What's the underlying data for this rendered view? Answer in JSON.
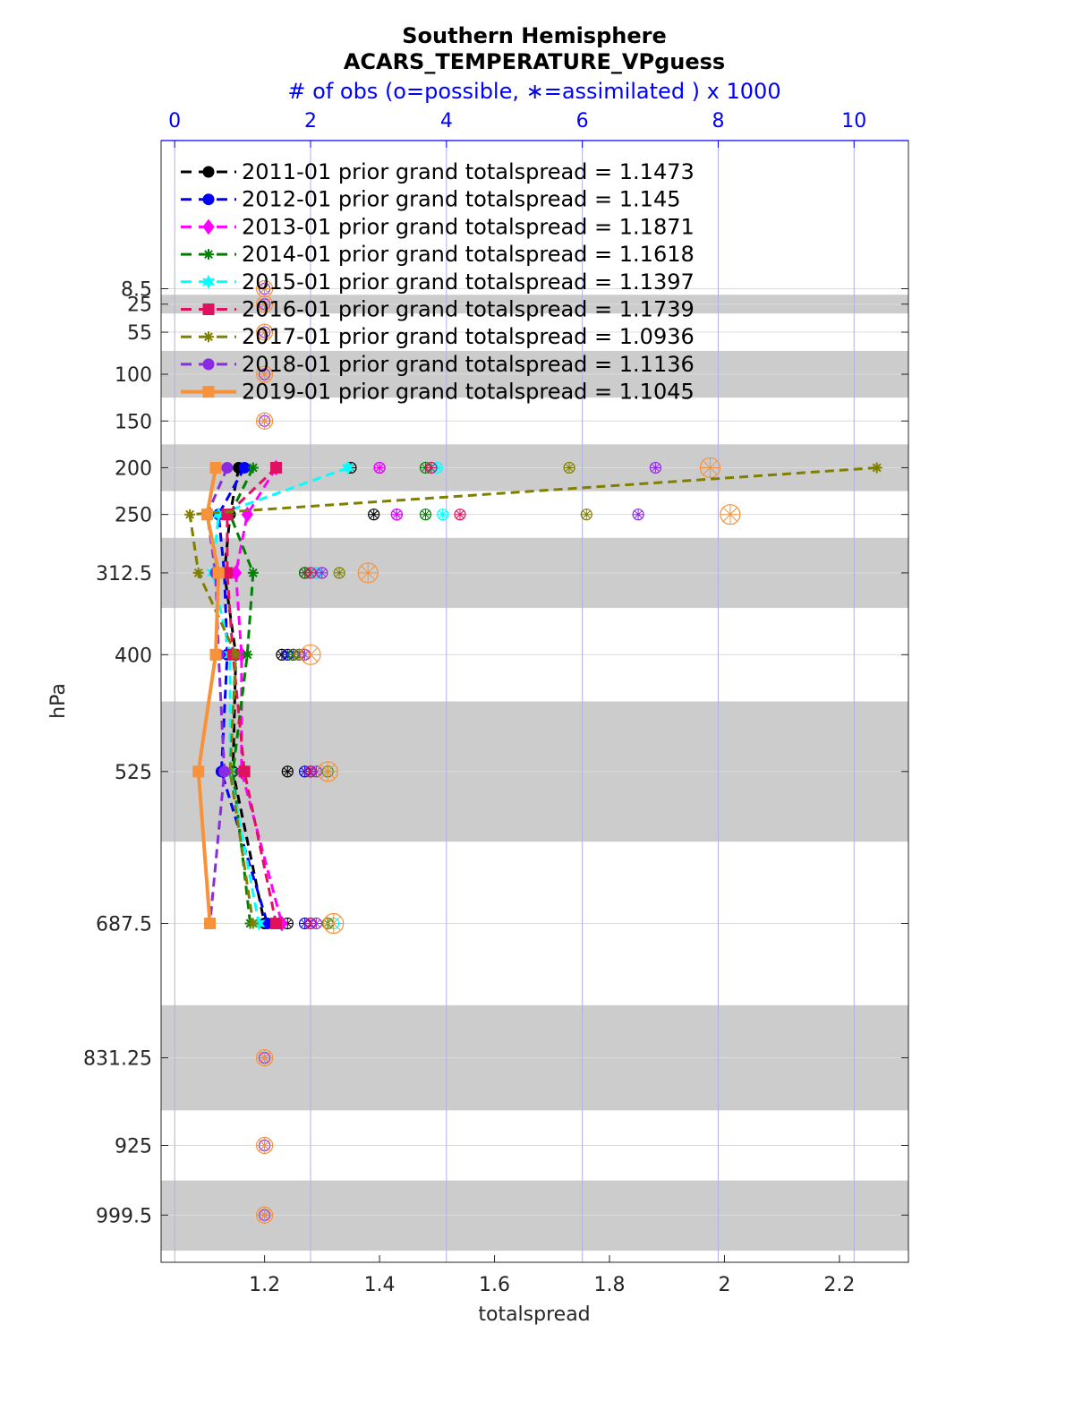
{
  "chart_data": {
    "type": "line",
    "title": "Southern Hemisphere",
    "subtitle": "ACARS_TEMPERATURE_VPguess",
    "top_axis_label": "# of obs (o=possible, ∗=assimilated ) x 1000",
    "xlabel": "totalspread",
    "ylabel": "hPa",
    "xlim": [
      1.02,
      2.32
    ],
    "xticks": [
      "1.2",
      "1.4",
      "1.6",
      "1.8",
      "2",
      "2.2"
    ],
    "xtick_values": [
      1.2,
      1.4,
      1.6,
      1.8,
      2.0,
      2.2
    ],
    "top_xlim": [
      -0.2,
      10.8
    ],
    "top_xticks": [
      "0",
      "2",
      "4",
      "6",
      "8",
      "10"
    ],
    "top_xtick_values": [
      0,
      2,
      4,
      6,
      8,
      10
    ],
    "y_scale": "reversed pressure",
    "ylim": [
      1050,
      -150
    ],
    "yticks": [
      "8.5",
      "25",
      "55",
      "100",
      "150",
      "200",
      "250",
      "312.5",
      "400",
      "525",
      "687.5",
      "831.25",
      "925",
      "999.5"
    ],
    "ytick_values": [
      8.5,
      25,
      55,
      100,
      150,
      200,
      250,
      312.5,
      400,
      525,
      687.5,
      831.25,
      925,
      999.5
    ],
    "shaded_bands": [
      [
        15,
        35
      ],
      [
        75,
        125
      ],
      [
        175,
        225
      ],
      [
        275,
        350
      ],
      [
        450,
        600
      ],
      [
        775,
        887.5
      ],
      [
        962.5,
        1037.5
      ]
    ],
    "grid": true,
    "legend_position": "top-left",
    "levels": [
      200,
      250,
      312.5,
      400,
      525,
      687.5
    ],
    "series": [
      {
        "name": "2011-01 prior grand totalspread = 1.1473",
        "color": "#000000",
        "marker": "circle",
        "dash": true,
        "values": [
          1.155,
          1.14,
          1.13,
          1.15,
          1.145,
          1.2
        ],
        "obs": [
          1.35,
          1.39,
          1.27,
          1.23,
          1.24,
          1.24
        ]
      },
      {
        "name": "2012-01 prior grand totalspread = 1.145",
        "color": "#0000ff",
        "marker": "circle",
        "dash": true,
        "values": [
          1.165,
          1.12,
          1.13,
          1.135,
          1.125,
          1.205
        ],
        "obs": [
          1.4,
          1.43,
          1.29,
          1.24,
          1.27,
          1.27
        ]
      },
      {
        "name": "2013-01 prior grand totalspread = 1.1871",
        "color": "#ff00ff",
        "marker": "diamond",
        "dash": true,
        "values": [
          1.22,
          1.17,
          1.15,
          1.16,
          1.16,
          1.23
        ],
        "obs": [
          1.4,
          1.43,
          1.27,
          1.25,
          1.28,
          1.28
        ]
      },
      {
        "name": "2014-01 prior grand totalspread = 1.1618",
        "color": "#008000",
        "marker": "star",
        "dash": true,
        "values": [
          1.18,
          1.14,
          1.18,
          1.17,
          1.145,
          1.175
        ],
        "obs": [
          1.48,
          1.48,
          1.27,
          1.25,
          1.28,
          1.31
        ]
      },
      {
        "name": "2015-01 prior grand totalspread = 1.1397",
        "color": "#00ffff",
        "marker": "hexagram",
        "dash": true,
        "values": [
          1.345,
          1.12,
          1.11,
          1.14,
          1.14,
          1.19
        ],
        "obs": [
          1.5,
          1.51,
          1.29,
          1.26,
          1.31,
          1.32
        ]
      },
      {
        "name": "2016-01 prior grand totalspread = 1.1739",
        "color": "#e0115f",
        "marker": "square",
        "dash": true,
        "values": [
          1.22,
          1.135,
          1.135,
          1.145,
          1.165,
          1.22
        ],
        "obs": [
          1.49,
          1.54,
          1.28,
          1.26,
          1.28,
          1.28
        ]
      },
      {
        "name": "2017-01 prior grand totalspread = 1.0936",
        "color": "#808000",
        "marker": "star",
        "dash": true,
        "values": [
          2.265,
          1.07,
          1.085,
          1.15,
          1.14,
          1.18
        ],
        "obs": [
          1.73,
          1.76,
          1.33,
          1.26,
          1.31,
          1.31
        ]
      },
      {
        "name": "2018-01 prior grand totalspread = 1.1136",
        "color": "#8a2be2",
        "marker": "circle",
        "dash": true,
        "values": [
          1.135,
          1.1,
          1.115,
          1.12,
          1.13,
          1.105
        ],
        "obs": [
          1.88,
          1.85,
          1.3,
          1.27,
          1.29,
          1.29
        ]
      },
      {
        "name": "2019-01 prior grand totalspread = 1.1045",
        "color": "#f7923a",
        "marker": "square",
        "dash": false,
        "values": [
          1.115,
          1.1,
          1.12,
          1.115,
          1.085,
          1.105
        ],
        "obs": [
          1.975,
          2.01,
          1.38,
          1.28,
          1.31,
          1.32
        ]
      }
    ],
    "possible_only_levels": [
      8.5,
      25,
      55,
      100,
      150,
      831.25,
      925,
      999.5
    ],
    "possible_only_value": 1.2
  }
}
